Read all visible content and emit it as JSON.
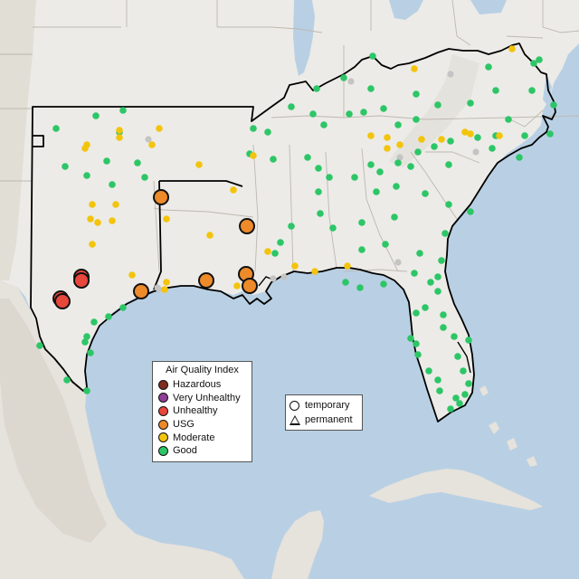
{
  "colors": {
    "water": "#b9d0e4",
    "land": "#ecebe7",
    "land_outside": "#e6e4e0",
    "mountain_shade": "#d9d4cb",
    "border_major": "#000000",
    "border_minor": "#bdb8b0",
    "hazardous": "#7e2d1f",
    "very_unhealthy": "#8f3f97",
    "unhealthy": "#e8473b",
    "usg": "#ed8a2a",
    "moderate": "#f3c40c",
    "good": "#2dc667",
    "unknown": "#c4c4c4"
  },
  "aqi_legend": {
    "title": "Air Quality Index",
    "items": [
      {
        "label": "Hazardous",
        "color": "#7e2d1f"
      },
      {
        "label": "Very Unhealthy",
        "color": "#8f3f97"
      },
      {
        "label": "Unhealthy",
        "color": "#e8473b"
      },
      {
        "label": "USG",
        "color": "#ed8a2a"
      },
      {
        "label": "Moderate",
        "color": "#f3c40c"
      },
      {
        "label": "Good",
        "color": "#2dc667"
      }
    ]
  },
  "type_legend": {
    "temporary": "temporary",
    "permanent": "permanent"
  }
}
